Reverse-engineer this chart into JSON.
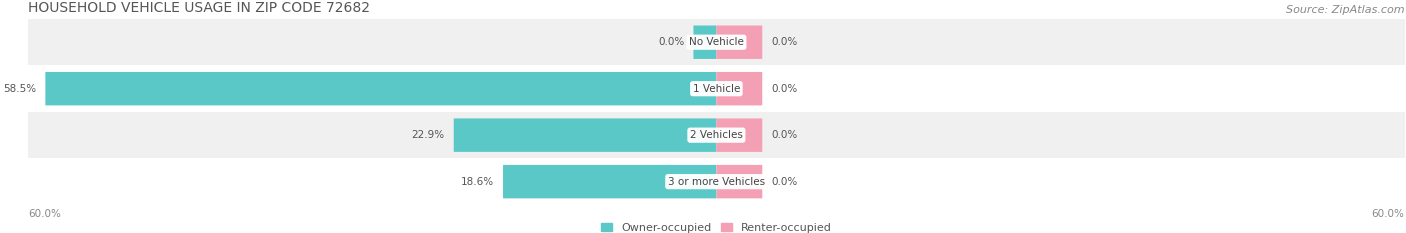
{
  "title": "HOUSEHOLD VEHICLE USAGE IN ZIP CODE 72682",
  "source": "Source: ZipAtlas.com",
  "categories": [
    "No Vehicle",
    "1 Vehicle",
    "2 Vehicles",
    "3 or more Vehicles"
  ],
  "owner_values": [
    0.0,
    58.5,
    22.9,
    18.6
  ],
  "renter_values": [
    0.0,
    0.0,
    0.0,
    0.0
  ],
  "owner_color": "#5BC8C8",
  "renter_color": "#F4A0B4",
  "max_value": 60.0,
  "axis_label_left": "60.0%",
  "axis_label_right": "60.0%",
  "legend_owner": "Owner-occupied",
  "legend_renter": "Renter-occupied",
  "title_fontsize": 10,
  "source_fontsize": 8,
  "background_color": "#FFFFFF",
  "row_colors": [
    "#F0F0F0",
    "#FFFFFF",
    "#F0F0F0",
    "#FFFFFF"
  ],
  "renter_stub": 4.0,
  "owner_stub": 2.0
}
